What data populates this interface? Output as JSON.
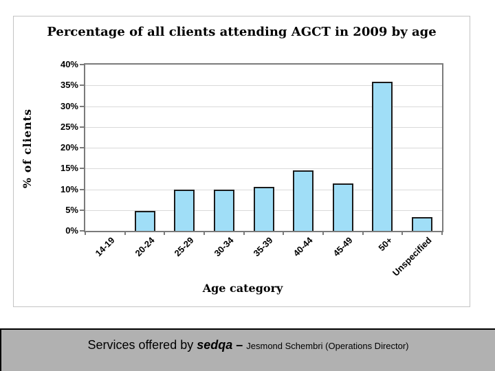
{
  "chart_data": {
    "type": "bar",
    "title": "Percentage of all clients attending AGCT in 2009 by age",
    "xlabel": "Age category",
    "ylabel": "% of clients",
    "categories": [
      "14-19",
      "20-24",
      "25-29",
      "30-34",
      "35-39",
      "40-44",
      "45-49",
      "50+",
      "Unspecified"
    ],
    "values": [
      0,
      4.8,
      9.9,
      9.9,
      10.6,
      14.6,
      11.4,
      35.8,
      3.3
    ],
    "ylim": [
      0,
      40
    ],
    "ytick_step": 5,
    "ytick_labels": [
      "0%",
      "5%",
      "10%",
      "15%",
      "20%",
      "25%",
      "30%",
      "35%",
      "40%"
    ],
    "grid": true,
    "legend": "none",
    "bar_color": "#a0def7",
    "bar_border_color": "#1a1a1a",
    "gridline_color": "#d9d9d9",
    "axis_color": "#7a7a7a"
  },
  "footer": {
    "prefix": "Services offered by ",
    "brand": "sedqa",
    "dash": " – ",
    "credit": "Jesmond Schembri (Operations Director)"
  }
}
